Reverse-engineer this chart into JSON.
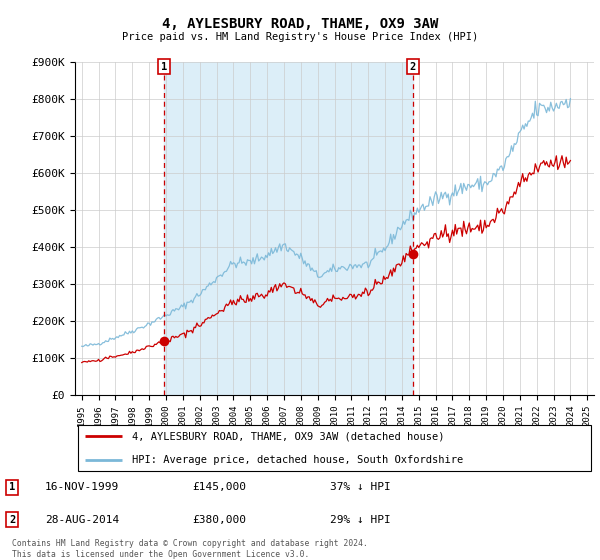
{
  "title": "4, AYLESBURY ROAD, THAME, OX9 3AW",
  "subtitle": "Price paid vs. HM Land Registry's House Price Index (HPI)",
  "ylim": [
    0,
    900000
  ],
  "xlim_left": 1994.6,
  "xlim_right": 2025.4,
  "yticks": [
    0,
    100000,
    200000,
    300000,
    400000,
    500000,
    600000,
    700000,
    800000,
    900000
  ],
  "ytick_labels": [
    "£0",
    "£100K",
    "£200K",
    "£300K",
    "£400K",
    "£500K",
    "£600K",
    "£700K",
    "£800K",
    "£900K"
  ],
  "sale1_x": 1999.88,
  "sale1_y": 145000,
  "sale2_x": 2014.65,
  "sale2_y": 380000,
  "hpi_color": "#7bb8d8",
  "price_color": "#cc0000",
  "marker_color": "#cc0000",
  "shade_color": "#dceef8",
  "grid_color": "#cccccc",
  "legend_entry1": "4, AYLESBURY ROAD, THAME, OX9 3AW (detached house)",
  "legend_entry2": "HPI: Average price, detached house, South Oxfordshire",
  "annotation1_date": "16-NOV-1999",
  "annotation1_price": "£145,000",
  "annotation1_pct": "37% ↓ HPI",
  "annotation2_date": "28-AUG-2014",
  "annotation2_price": "£380,000",
  "annotation2_pct": "29% ↓ HPI",
  "footer": "Contains HM Land Registry data © Crown copyright and database right 2024.\nThis data is licensed under the Open Government Licence v3.0."
}
